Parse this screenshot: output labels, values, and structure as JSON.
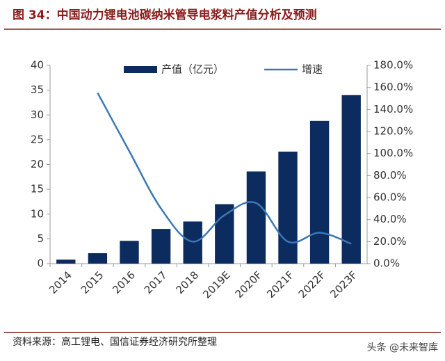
{
  "chart_data": {
    "type": "bar-line",
    "title": "图 34：中国动力锂电池碳纳米管导电浆料产值分析及预测",
    "categories": [
      "2014",
      "2015",
      "2016",
      "2017",
      "2018",
      "2019E",
      "2020F",
      "2021F",
      "2022F",
      "2023F"
    ],
    "series": [
      {
        "name": "产值（亿元）",
        "color": "#0c2b5e",
        "type": "bar",
        "values": [
          0.8,
          2.1,
          4.6,
          7.0,
          8.5,
          12.0,
          18.6,
          22.6,
          28.8,
          34.0
        ]
      },
      {
        "name": "增速",
        "color": "#3a78b5",
        "type": "line",
        "axis": "y2",
        "values": [
          null,
          155,
          102,
          50,
          20,
          44,
          55,
          20,
          28,
          18
        ]
      }
    ],
    "ylim": [
      0,
      40
    ],
    "yticks": [
      0,
      5,
      10,
      15,
      20,
      25,
      30,
      35,
      40
    ],
    "y2lim": [
      0,
      180
    ],
    "y2ticks": [
      {
        "value": 0,
        "label": "0.0%"
      },
      {
        "value": 20,
        "label": "20.0%"
      },
      {
        "value": 40,
        "label": "40.0%"
      },
      {
        "value": 60,
        "label": "60.0%"
      },
      {
        "value": 80,
        "label": "80.0%"
      },
      {
        "value": 100,
        "label": "100.0%"
      },
      {
        "value": 120,
        "label": "120.0%"
      },
      {
        "value": 140,
        "label": "140.0%"
      },
      {
        "value": 160,
        "label": "160.0%"
      },
      {
        "value": 180,
        "label": "180.0%"
      }
    ],
    "legend": "top",
    "source": "资料来源：高工锂电、国信证券经济研究所整理",
    "watermark": "头条 @未来智库"
  }
}
